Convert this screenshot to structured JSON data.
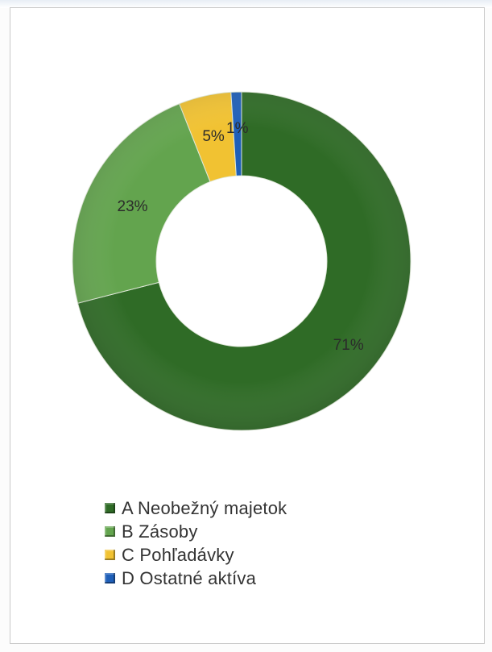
{
  "chart_data": {
    "type": "pie",
    "categories": [
      "A Neobežný majetok",
      "B Zásoby",
      "C Pohľadávky",
      "D Ostatné aktíva"
    ],
    "values": [
      71,
      23,
      5,
      1
    ],
    "data_labels": [
      "71%",
      "23%",
      "5%",
      "1%"
    ],
    "colors": [
      "#2f6b26",
      "#63a44e",
      "#f1c232",
      "#1f5fb8"
    ],
    "legend_position": "bottom"
  }
}
